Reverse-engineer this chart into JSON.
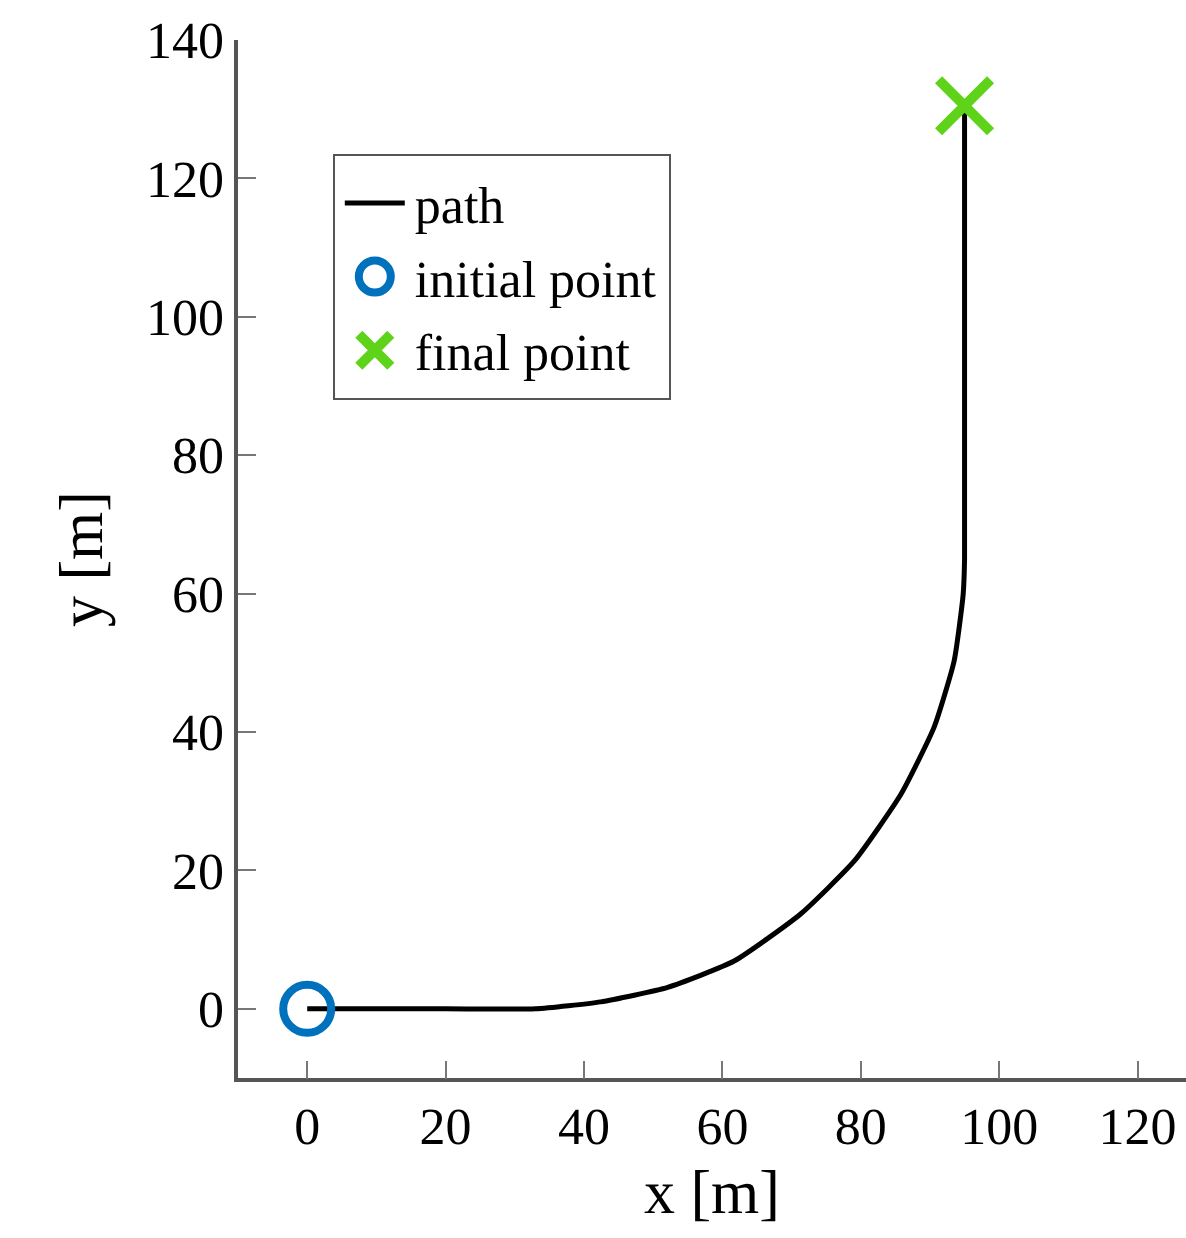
{
  "chart_data": {
    "type": "line",
    "xlabel": "x [m]",
    "ylabel": "y [m]",
    "xlim": [
      -10,
      127
    ],
    "xticks": [
      0,
      20,
      40,
      60,
      80,
      100,
      120
    ],
    "ylim": [
      -10,
      140
    ],
    "yticks": [
      0,
      20,
      40,
      60,
      80,
      100,
      120,
      140
    ],
    "legend": "top left",
    "series": [
      {
        "name": "path",
        "color": "#000000",
        "marker": "none",
        "line_style": "solid",
        "x": [
          0,
          20,
          33,
          42.4,
          52.1,
          61.7,
          71.3,
          79.1,
          85.8,
          90.6,
          93.5,
          94.8,
          95,
          95
        ],
        "values": [
          0,
          0,
          0,
          1,
          3.1,
          6.9,
          13.7,
          21.4,
          31,
          40.7,
          50.3,
          59.9,
          65,
          130.5
        ]
      },
      {
        "name": "initial point",
        "type": "scatter",
        "color": "#0072bd",
        "marker": "circle",
        "x": [
          0
        ],
        "values": [
          0
        ]
      },
      {
        "name": "final point",
        "type": "scatter",
        "color": "#5fd31a",
        "marker": "cross",
        "x": [
          95
        ],
        "values": [
          130.5
        ]
      }
    ]
  }
}
